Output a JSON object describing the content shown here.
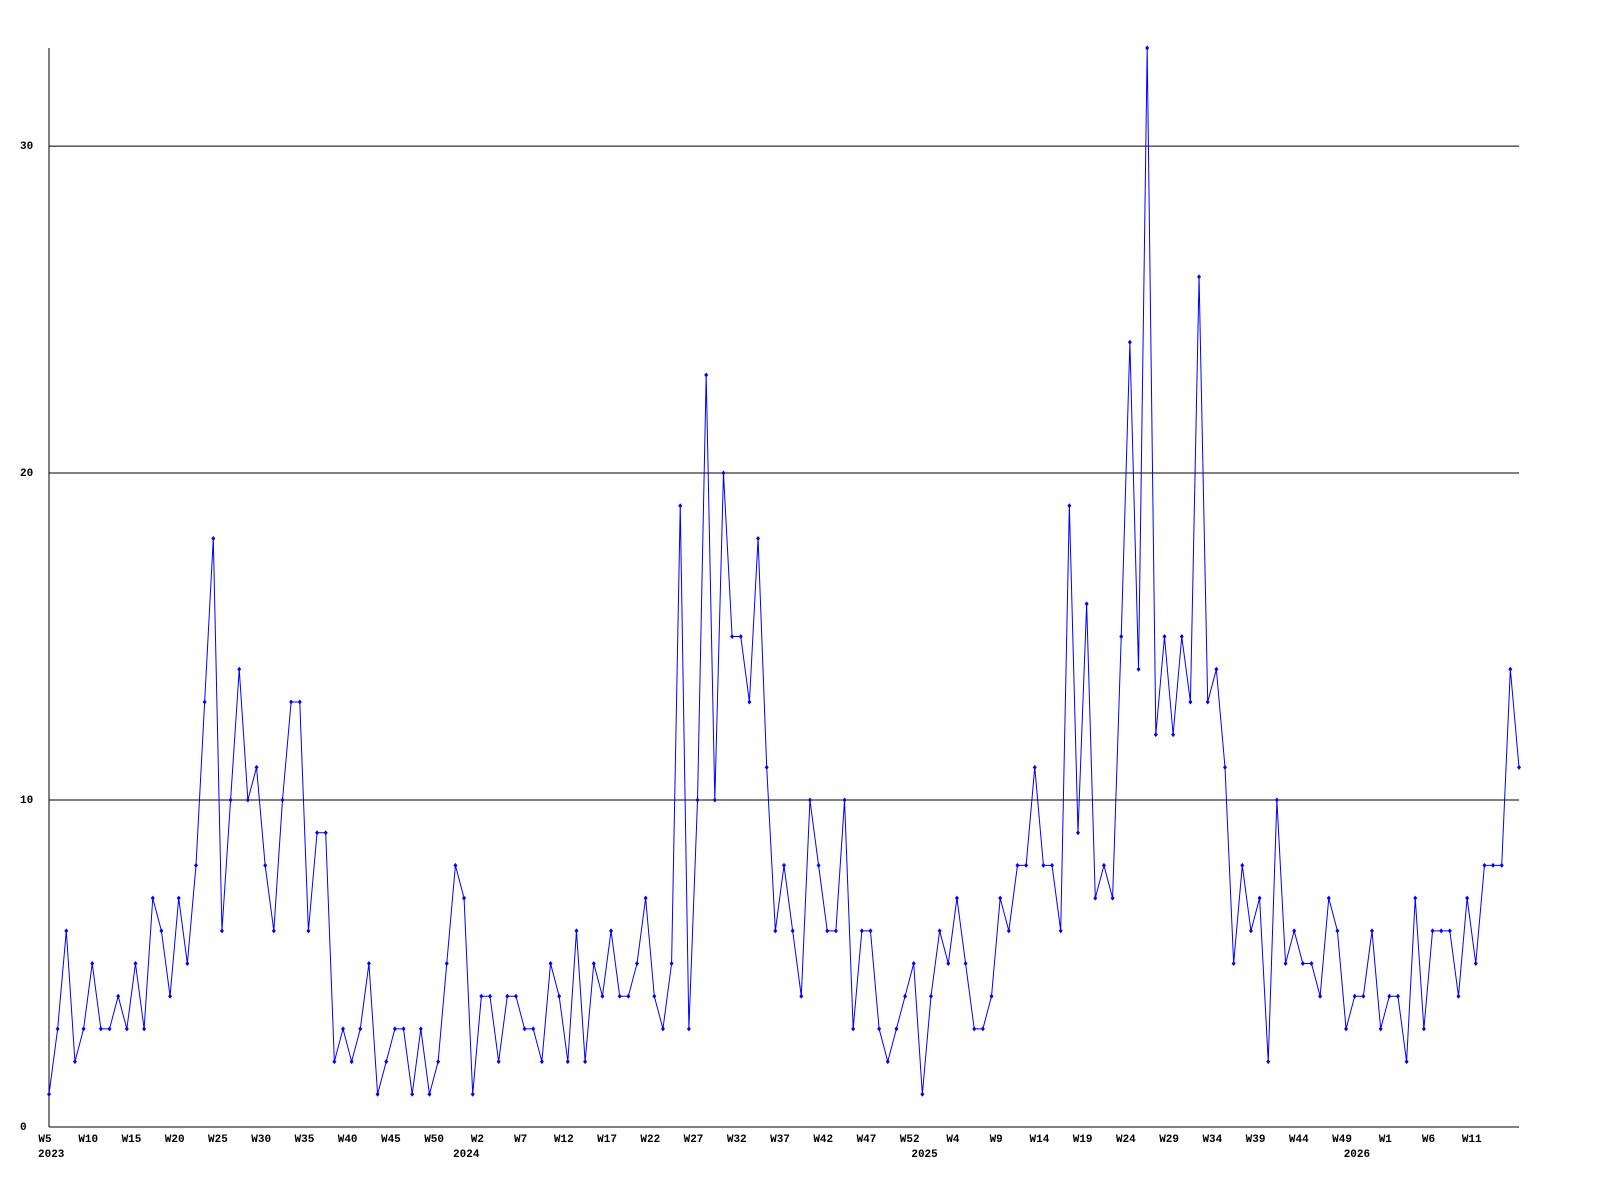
{
  "chart_data": {
    "type": "line",
    "categories": [
      "W5",
      null,
      null,
      null,
      null,
      "W10",
      null,
      null,
      null,
      null,
      "W15",
      null,
      null,
      null,
      null,
      "W20",
      null,
      null,
      null,
      null,
      "W25",
      null,
      null,
      null,
      null,
      "W30",
      null,
      null,
      null,
      null,
      "W35",
      null,
      null,
      null,
      null,
      "W40",
      null,
      null,
      null,
      null,
      "W45",
      null,
      null,
      null,
      null,
      "W50",
      null,
      null,
      null,
      null,
      "W2",
      null,
      null,
      null,
      null,
      "W7",
      null,
      null,
      null,
      null,
      "W12",
      null,
      null,
      null,
      null,
      "W17",
      null,
      null,
      null,
      null,
      "W22",
      null,
      null,
      null,
      null,
      "W27",
      null,
      null,
      null,
      null,
      "W32",
      null,
      null,
      null,
      null,
      "W37",
      null,
      null,
      null,
      null,
      "W42",
      null,
      null,
      null,
      null,
      "W47",
      null,
      null,
      null,
      null,
      "W52",
      null,
      null,
      null,
      null,
      "W4",
      null,
      null,
      null,
      null,
      "W9",
      null,
      null,
      null,
      null,
      "W14",
      null,
      null,
      null,
      null,
      "W19",
      null,
      null,
      null,
      null,
      "W24",
      null,
      null,
      null,
      null,
      "W29",
      null,
      null,
      null,
      null,
      "W34",
      null,
      null,
      null,
      null,
      "W39",
      null,
      null,
      null,
      null,
      "W44",
      null,
      null,
      null,
      null,
      "W49",
      null,
      null,
      null,
      null,
      "W1",
      null,
      null,
      null,
      null,
      "W6",
      null,
      null,
      null,
      null,
      "W11",
      null,
      null,
      null,
      null,
      null
    ],
    "category_years": [
      "2023",
      null,
      null,
      null,
      null,
      null,
      null,
      null,
      null,
      null,
      null,
      null,
      null,
      null,
      null,
      null,
      null,
      null,
      null,
      null,
      null,
      null,
      null,
      null,
      null,
      null,
      null,
      null,
      null,
      null,
      null,
      null,
      null,
      null,
      null,
      null,
      null,
      null,
      null,
      null,
      null,
      null,
      null,
      null,
      null,
      null,
      null,
      null,
      "2024",
      null,
      null,
      null,
      null,
      null,
      null,
      null,
      null,
      null,
      null,
      null,
      null,
      null,
      null,
      null,
      null,
      null,
      null,
      null,
      null,
      null,
      null,
      null,
      null,
      null,
      null,
      null,
      null,
      null,
      null,
      null,
      null,
      null,
      null,
      null,
      null,
      null,
      null,
      null,
      null,
      null,
      null,
      null,
      null,
      null,
      null,
      null,
      null,
      null,
      null,
      null,
      null,
      "2025",
      null,
      null,
      null,
      null,
      null,
      null,
      null,
      null,
      null,
      null,
      null,
      null,
      null,
      null,
      null,
      null,
      null,
      null,
      null,
      null,
      null,
      null,
      null,
      null,
      null,
      null,
      null,
      null,
      null,
      null,
      null,
      null,
      null,
      null,
      null,
      null,
      null,
      null,
      null,
      null,
      null,
      null,
      null,
      null,
      null,
      null,
      null,
      null,
      null,
      "2026",
      null,
      null,
      null,
      null,
      null,
      null,
      null,
      null,
      null,
      null,
      null,
      null,
      null,
      null,
      null,
      null
    ],
    "series": [
      {
        "color": "#0000ff",
        "values": [
          1,
          3,
          6,
          2,
          3,
          5,
          3,
          3,
          4,
          3,
          5,
          3,
          7,
          6,
          4,
          7,
          5,
          8,
          13,
          18,
          6,
          10,
          14,
          10,
          11,
          8,
          6,
          10,
          13,
          13,
          6,
          9,
          9,
          2,
          3,
          2,
          3,
          5,
          1,
          2,
          3,
          3,
          1,
          3,
          1,
          2,
          5,
          8,
          7,
          1,
          4,
          4,
          2,
          4,
          4,
          3,
          3,
          2,
          5,
          4,
          2,
          6,
          2,
          5,
          4,
          6,
          4,
          4,
          5,
          7,
          4,
          3,
          5,
          19,
          3,
          10,
          23,
          10,
          20,
          15,
          15,
          13,
          18,
          11,
          6,
          8,
          6,
          4,
          10,
          8,
          6,
          6,
          10,
          3,
          6,
          6,
          3,
          2,
          3,
          4,
          5,
          1,
          4,
          6,
          5,
          7,
          5,
          3,
          3,
          4,
          7,
          6,
          8,
          8,
          11,
          8,
          8,
          6,
          19,
          9,
          16,
          7,
          8,
          7,
          15,
          24,
          14,
          33,
          12,
          15,
          12,
          15,
          13,
          26,
          13,
          14,
          11,
          5,
          8,
          6,
          7,
          2,
          10,
          5,
          6,
          5,
          5,
          4,
          7,
          6,
          3,
          4,
          4,
          6,
          3,
          4,
          4,
          2,
          7,
          3,
          6,
          6,
          6,
          4,
          7,
          5,
          8,
          8,
          8,
          14,
          11
        ]
      }
    ],
    "ylim": [
      0,
      33
    ],
    "yticks": [
      0,
      10,
      20,
      30
    ],
    "grid": true
  }
}
